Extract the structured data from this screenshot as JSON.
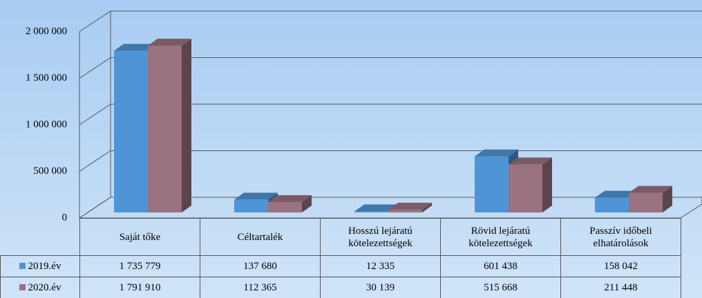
{
  "chart_data": {
    "type": "bar3d",
    "categories": [
      "Saját tőke",
      "Céltartalék",
      "Hosszú lejáratú kötelezettségek",
      "Rövid lejáratú kötelezettségek",
      "Passzív időbeli elhatárolások"
    ],
    "series": [
      {
        "name": "2019.év",
        "color": "#4f95d6",
        "values": [
          1735779,
          137680,
          12335,
          601438,
          158042
        ],
        "value_labels": [
          "1 735 779",
          "137 680",
          "12 335",
          "601 438",
          "158 042"
        ]
      },
      {
        "name": "2020.év",
        "color": "#9a7280",
        "values": [
          1791910,
          112365,
          30139,
          515668,
          211448
        ],
        "value_labels": [
          "1 791 910",
          "112 365",
          "30 139",
          "515 668",
          "211 448"
        ]
      }
    ],
    "ylim": [
      0,
      2000000
    ],
    "yticks": [
      0,
      {
        "value": 500000,
        "label": "500 000"
      },
      {
        "value": 1000000,
        "label": "1 000 000"
      },
      {
        "value": 1500000,
        "label": "1 500 000"
      },
      {
        "value": 2000000,
        "label": "2 000 000"
      }
    ],
    "grid": true
  }
}
